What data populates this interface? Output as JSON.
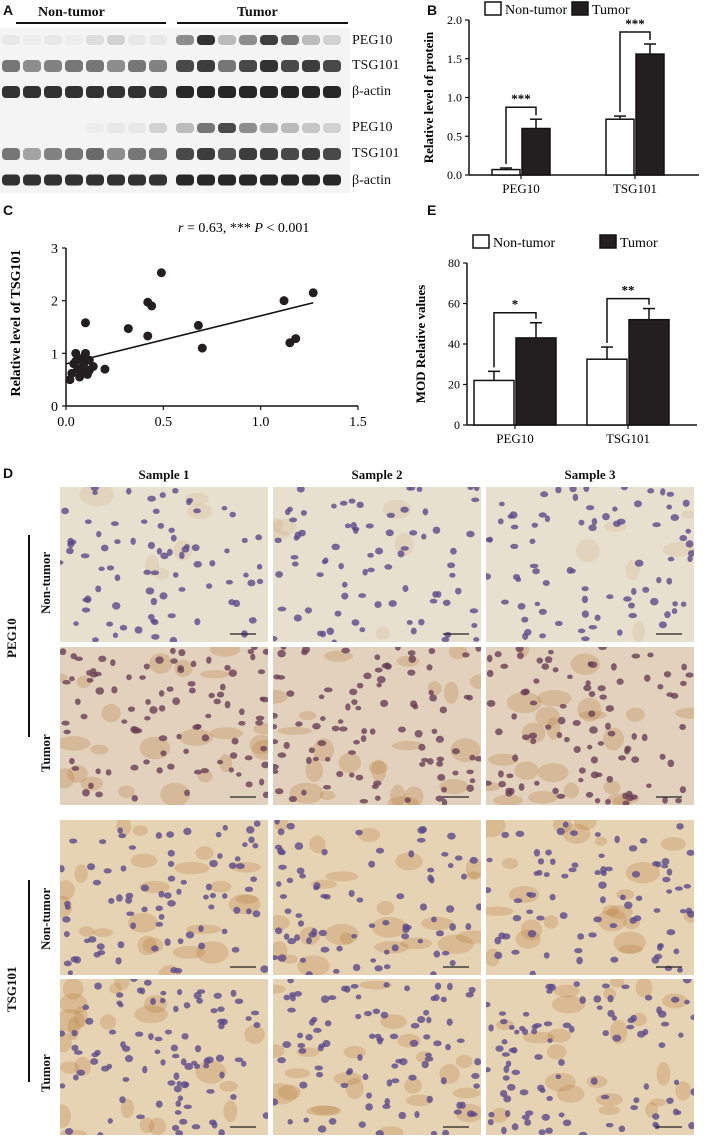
{
  "panel_letters": {
    "a": "A",
    "b": "B",
    "c": "C",
    "d": "D",
    "e": "E"
  },
  "blot": {
    "group_labels": [
      "Non-tumor",
      "Tumor"
    ],
    "band_labels": [
      "PEG10",
      "TSG101",
      "β-actin",
      "PEG10",
      "TSG101",
      "β-actin"
    ]
  },
  "colors": {
    "tumor_bar": "#231f20",
    "nontumor_bar": "#ffffff",
    "ihc_background": "#e8e0cf",
    "nucleus": "#5b4a8a",
    "tumor_nucleus": "#6a3f55",
    "brown_stain": "#b77a3a"
  },
  "chart_data": [
    {
      "id": "B",
      "type": "bar",
      "ylabel": "Relative level of protein",
      "categories": [
        "PEG10",
        "TSG101"
      ],
      "series": [
        {
          "name": "Non-tumor",
          "values": [
            0.07,
            0.72
          ],
          "errors": [
            0.02,
            0.04
          ]
        },
        {
          "name": "Tumor",
          "values": [
            0.6,
            1.56
          ],
          "errors": [
            0.12,
            0.13
          ]
        }
      ],
      "ylim": [
        0,
        2.0
      ],
      "yticks": [
        "0.0",
        "0.5",
        "1.0",
        "1.5",
        "2.0"
      ],
      "significance": [
        "***",
        "***"
      ],
      "legend_position": "top"
    },
    {
      "id": "C",
      "type": "scatter",
      "xlabel": "Relative level of PEG10",
      "ylabel": "Relative level of TSG101",
      "xlim": [
        0,
        1.5
      ],
      "ylim": [
        0,
        3
      ],
      "xticks": [
        "0.0",
        "0.5",
        "1.0",
        "1.5"
      ],
      "yticks": [
        "0",
        "1",
        "2",
        "3"
      ],
      "annotation": {
        "r_part": "r",
        "r_value": " = 0.63, *** ",
        "p_part": "P",
        "p_value": " < 0.001"
      },
      "points": [
        [
          0.02,
          0.5
        ],
        [
          0.03,
          0.62
        ],
        [
          0.04,
          0.8
        ],
        [
          0.05,
          0.85
        ],
        [
          0.05,
          1.0
        ],
        [
          0.06,
          0.7
        ],
        [
          0.07,
          0.55
        ],
        [
          0.08,
          0.9
        ],
        [
          0.08,
          0.65
        ],
        [
          0.09,
          0.78
        ],
        [
          0.1,
          1.58
        ],
        [
          0.1,
          1.0
        ],
        [
          0.11,
          0.6
        ],
        [
          0.12,
          0.87
        ],
        [
          0.12,
          0.68
        ],
        [
          0.14,
          0.75
        ],
        [
          0.2,
          0.7
        ],
        [
          0.32,
          1.47
        ],
        [
          0.42,
          1.33
        ],
        [
          0.42,
          1.97
        ],
        [
          0.44,
          1.9
        ],
        [
          0.49,
          2.53
        ],
        [
          0.68,
          1.53
        ],
        [
          0.7,
          1.1
        ],
        [
          1.12,
          2.0
        ],
        [
          1.15,
          1.2
        ],
        [
          1.18,
          1.28
        ],
        [
          1.27,
          2.15
        ]
      ],
      "fit_line": [
        [
          0.0,
          0.8
        ],
        [
          1.27,
          1.96
        ]
      ]
    },
    {
      "id": "E",
      "type": "bar",
      "ylabel": "MOD Relative values",
      "categories": [
        "PEG10",
        "TSG101"
      ],
      "series": [
        {
          "name": "Non-tumor",
          "values": [
            22,
            32.5
          ],
          "errors": [
            4.5,
            6
          ]
        },
        {
          "name": "Tumor",
          "values": [
            43,
            52
          ],
          "errors": [
            7.5,
            5.5
          ]
        }
      ],
      "ylim": [
        0,
        80
      ],
      "yticks": [
        "0",
        "20",
        "40",
        "60",
        "80"
      ],
      "significance": [
        "*",
        "**"
      ],
      "legend_position": "top"
    }
  ],
  "ihc": {
    "columns": [
      "Sample 1",
      "Sample 2",
      "Sample 3"
    ],
    "groups": [
      {
        "marker": "PEG10",
        "rows": [
          "Non-tumor",
          "Tumor"
        ]
      },
      {
        "marker": "TSG101",
        "rows": [
          "Non-tumor",
          "Tumor"
        ]
      }
    ]
  }
}
